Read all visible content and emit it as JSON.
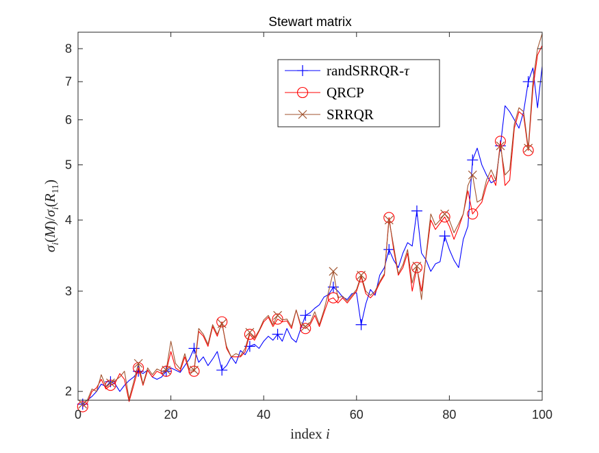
{
  "chart_data": {
    "type": "line",
    "title": "Stewart matrix",
    "xlabel": "index i",
    "ylabel": "σi(M)/σi(R11)",
    "xlim": [
      0,
      100
    ],
    "ylim": [
      1.93,
      8.55
    ],
    "yscale": "log",
    "x_ticks": [
      0,
      20,
      40,
      60,
      80,
      100
    ],
    "x_tick_labels": [
      "0",
      "20",
      "40",
      "60",
      "80",
      "100"
    ],
    "y_ticks": [
      2,
      3,
      4,
      5,
      6,
      7,
      8
    ],
    "y_tick_labels": [
      "2",
      "3",
      "4",
      "5",
      "6",
      "7",
      "8"
    ],
    "legend_position": "top-right",
    "marker_every": 6,
    "series": [
      {
        "name": "randSRRQR-τ",
        "color": "#0000ff",
        "marker": "plus",
        "x": [
          1,
          2,
          3,
          4,
          5,
          6,
          7,
          8,
          9,
          10,
          11,
          12,
          13,
          14,
          15,
          16,
          17,
          18,
          19,
          20,
          21,
          22,
          23,
          24,
          25,
          26,
          27,
          28,
          29,
          30,
          31,
          32,
          33,
          34,
          35,
          36,
          37,
          38,
          39,
          40,
          41,
          42,
          43,
          44,
          45,
          46,
          47,
          48,
          49,
          50,
          51,
          52,
          53,
          54,
          55,
          56,
          57,
          58,
          59,
          60,
          61,
          62,
          63,
          64,
          65,
          66,
          67,
          68,
          69,
          70,
          71,
          72,
          73,
          74,
          75,
          76,
          77,
          78,
          79,
          80,
          81,
          82,
          83,
          84,
          85,
          86,
          87,
          88,
          89,
          90,
          91,
          92,
          93,
          94,
          95,
          96,
          97,
          98,
          99,
          100
        ],
        "values": [
          1.9,
          1.93,
          1.96,
          2.0,
          2.06,
          2.04,
          2.08,
          2.06,
          2.0,
          2.05,
          2.09,
          2.12,
          2.17,
          2.15,
          2.18,
          2.12,
          2.1,
          2.12,
          2.17,
          2.2,
          2.18,
          2.16,
          2.22,
          2.28,
          2.38,
          2.25,
          2.3,
          2.22,
          2.28,
          2.35,
          2.18,
          2.22,
          2.3,
          2.24,
          2.36,
          2.32,
          2.4,
          2.42,
          2.38,
          2.45,
          2.5,
          2.46,
          2.52,
          2.45,
          2.58,
          2.48,
          2.44,
          2.58,
          2.72,
          2.75,
          2.8,
          2.84,
          2.93,
          2.96,
          3.05,
          3.0,
          2.93,
          2.9,
          2.97,
          2.98,
          2.62,
          2.85,
          3.02,
          2.95,
          3.2,
          3.3,
          3.55,
          3.4,
          3.3,
          3.5,
          3.65,
          3.6,
          4.15,
          3.5,
          3.4,
          3.25,
          3.35,
          3.38,
          3.75,
          3.55,
          3.4,
          3.3,
          3.7,
          3.9,
          5.1,
          5.35,
          5.0,
          4.8,
          4.65,
          4.7,
          5.4,
          6.35,
          6.2,
          6.0,
          5.8,
          6.2,
          7.0,
          7.4,
          6.3,
          7.45
        ]
      },
      {
        "name": "QRCP",
        "color": "#ff0000",
        "marker": "circle",
        "x": [
          1,
          2,
          3,
          4,
          5,
          6,
          7,
          8,
          9,
          10,
          11,
          12,
          13,
          14,
          15,
          16,
          17,
          18,
          19,
          20,
          21,
          22,
          23,
          24,
          25,
          26,
          27,
          28,
          29,
          30,
          31,
          32,
          33,
          34,
          35,
          36,
          37,
          38,
          39,
          40,
          41,
          42,
          43,
          44,
          45,
          46,
          47,
          48,
          49,
          50,
          51,
          52,
          53,
          54,
          55,
          56,
          57,
          58,
          59,
          60,
          61,
          62,
          63,
          64,
          65,
          66,
          67,
          68,
          69,
          70,
          71,
          72,
          73,
          74,
          75,
          76,
          77,
          78,
          79,
          80,
          81,
          82,
          83,
          84,
          85,
          86,
          87,
          88,
          89,
          90,
          91,
          92,
          93,
          94,
          95,
          96,
          97,
          98,
          99,
          100
        ],
        "values": [
          1.88,
          1.91,
          2.0,
          2.03,
          2.1,
          2.02,
          2.05,
          2.07,
          2.15,
          2.1,
          1.92,
          2.05,
          2.2,
          2.05,
          2.18,
          2.12,
          2.17,
          2.15,
          2.17,
          2.35,
          2.2,
          2.17,
          2.3,
          2.16,
          2.17,
          2.55,
          2.5,
          2.4,
          2.6,
          2.5,
          2.65,
          2.38,
          2.3,
          2.3,
          2.3,
          2.35,
          2.52,
          2.46,
          2.55,
          2.65,
          2.7,
          2.6,
          2.68,
          2.65,
          2.66,
          2.58,
          2.78,
          2.6,
          2.58,
          2.62,
          2.72,
          2.6,
          2.75,
          2.9,
          2.92,
          2.86,
          2.92,
          2.86,
          2.93,
          3.0,
          3.18,
          2.97,
          2.92,
          2.98,
          3.1,
          3.2,
          4.04,
          3.55,
          3.2,
          3.3,
          3.5,
          3.0,
          3.3,
          3.0,
          3.45,
          4.0,
          3.85,
          3.95,
          4.05,
          3.9,
          3.7,
          3.88,
          4.1,
          4.5,
          4.1,
          4.2,
          4.3,
          4.6,
          4.8,
          4.6,
          5.5,
          4.6,
          4.7,
          5.8,
          6.2,
          6.1,
          5.3,
          6.8,
          7.8,
          8.1
        ]
      },
      {
        "name": "SRRQR",
        "color": "#a0522d",
        "marker": "x",
        "x": [
          1,
          2,
          3,
          4,
          5,
          6,
          7,
          8,
          9,
          10,
          11,
          12,
          13,
          14,
          15,
          16,
          17,
          18,
          19,
          20,
          21,
          22,
          23,
          24,
          25,
          26,
          27,
          28,
          29,
          30,
          31,
          32,
          33,
          34,
          35,
          36,
          37,
          38,
          39,
          40,
          41,
          42,
          43,
          44,
          45,
          46,
          47,
          48,
          49,
          50,
          51,
          52,
          53,
          54,
          55,
          56,
          57,
          58,
          59,
          60,
          61,
          62,
          63,
          64,
          65,
          66,
          67,
          68,
          69,
          70,
          71,
          72,
          73,
          74,
          75,
          76,
          77,
          78,
          79,
          80,
          81,
          82,
          83,
          84,
          85,
          86,
          87,
          88,
          89,
          90,
          91,
          92,
          93,
          94,
          95,
          96,
          97,
          98,
          99,
          100
        ],
        "values": [
          1.9,
          1.93,
          2.02,
          2.0,
          2.14,
          2.04,
          2.07,
          2.09,
          2.12,
          2.17,
          1.94,
          2.08,
          2.24,
          2.06,
          2.2,
          2.14,
          2.19,
          2.17,
          2.18,
          2.45,
          2.24,
          2.19,
          2.33,
          2.18,
          2.18,
          2.58,
          2.52,
          2.42,
          2.62,
          2.52,
          2.63,
          2.4,
          2.3,
          2.33,
          2.31,
          2.38,
          2.54,
          2.48,
          2.56,
          2.67,
          2.72,
          2.62,
          2.72,
          2.67,
          2.68,
          2.6,
          2.78,
          2.62,
          2.6,
          2.64,
          2.76,
          2.62,
          2.78,
          3.0,
          3.25,
          2.92,
          2.94,
          2.88,
          2.95,
          3.02,
          3.2,
          3.0,
          2.95,
          3.0,
          3.12,
          3.22,
          4.0,
          3.6,
          3.22,
          3.34,
          3.55,
          3.1,
          3.32,
          2.9,
          3.48,
          4.1,
          3.92,
          4.0,
          4.1,
          4.0,
          3.8,
          3.94,
          4.1,
          4.6,
          4.8,
          4.3,
          4.35,
          4.7,
          4.9,
          4.7,
          5.4,
          4.8,
          4.9,
          5.9,
          6.3,
          6.2,
          5.35,
          7.0,
          8.0,
          8.5
        ]
      }
    ]
  }
}
